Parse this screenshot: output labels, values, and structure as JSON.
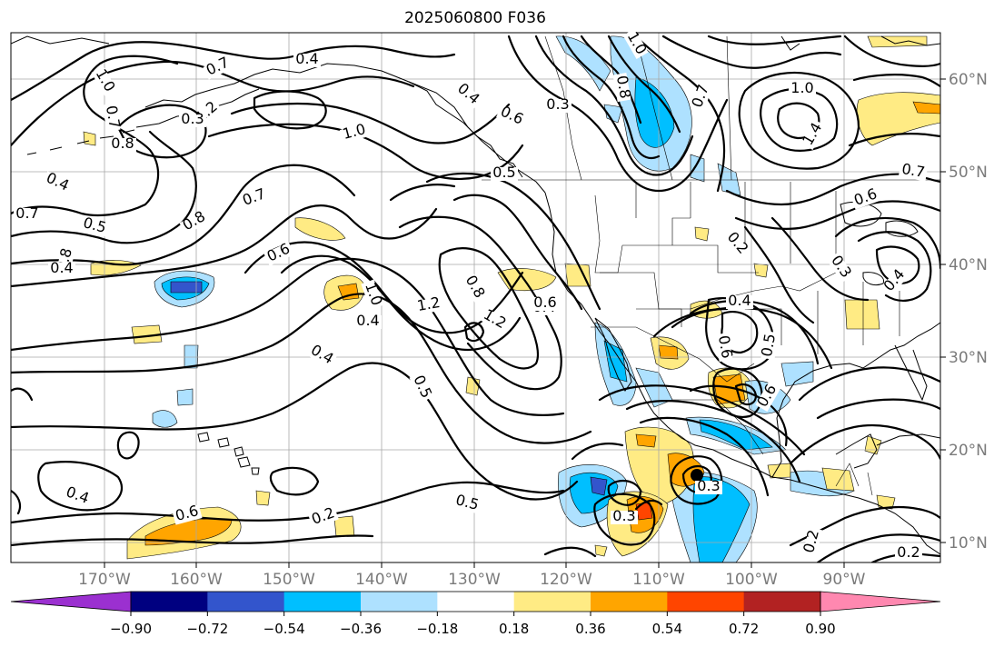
{
  "title": "2025060800 F036",
  "lon_ticks": [
    "170°W",
    "160°W",
    "150°W",
    "140°W",
    "130°W",
    "120°W",
    "110°W",
    "100°W",
    "90°W"
  ],
  "lat_ticks": [
    "60°N",
    "50°N",
    "40°N",
    "30°N",
    "20°N",
    "10°N"
  ],
  "colorbar": {
    "colors": [
      "#9b30d0",
      "#000080",
      "#3355cc",
      "#00bfff",
      "#aee1ff",
      "#ffffff",
      "#ffeb84",
      "#ffa500",
      "#ff4500",
      "#b22222",
      "#ff88b0"
    ],
    "tick_labels": [
      "−0.90",
      "−0.72",
      "−0.54",
      "−0.36",
      "−0.18",
      "0.18",
      "0.36",
      "0.54",
      "0.72",
      "0.90"
    ]
  },
  "contour_labels": [
    "0.4",
    "1.0",
    "0.7",
    "1.2",
    "1.0",
    "0.7",
    "0.4",
    "0.5",
    "0.8",
    "0.8",
    "0.7",
    "0.6",
    "1.0",
    "1.2",
    "0.8",
    "1.2",
    "0.4",
    "0.5",
    "0.4",
    "0.6",
    "0.2",
    "0.3",
    "0.4",
    "0.5",
    "0.3",
    "1.0",
    "0.8",
    "0.7",
    "0.4",
    "0.6",
    "1.0",
    "1.4",
    "0.7",
    "0.6",
    "0.2",
    "0.3",
    "0.4",
    "0.4",
    "0.6",
    "0.5",
    "0.6",
    "0.3",
    "0.2",
    "0.2",
    "0.3",
    "0.4",
    "0.7",
    "0.8",
    "0.4",
    "0.6",
    "0.5"
  ]
}
